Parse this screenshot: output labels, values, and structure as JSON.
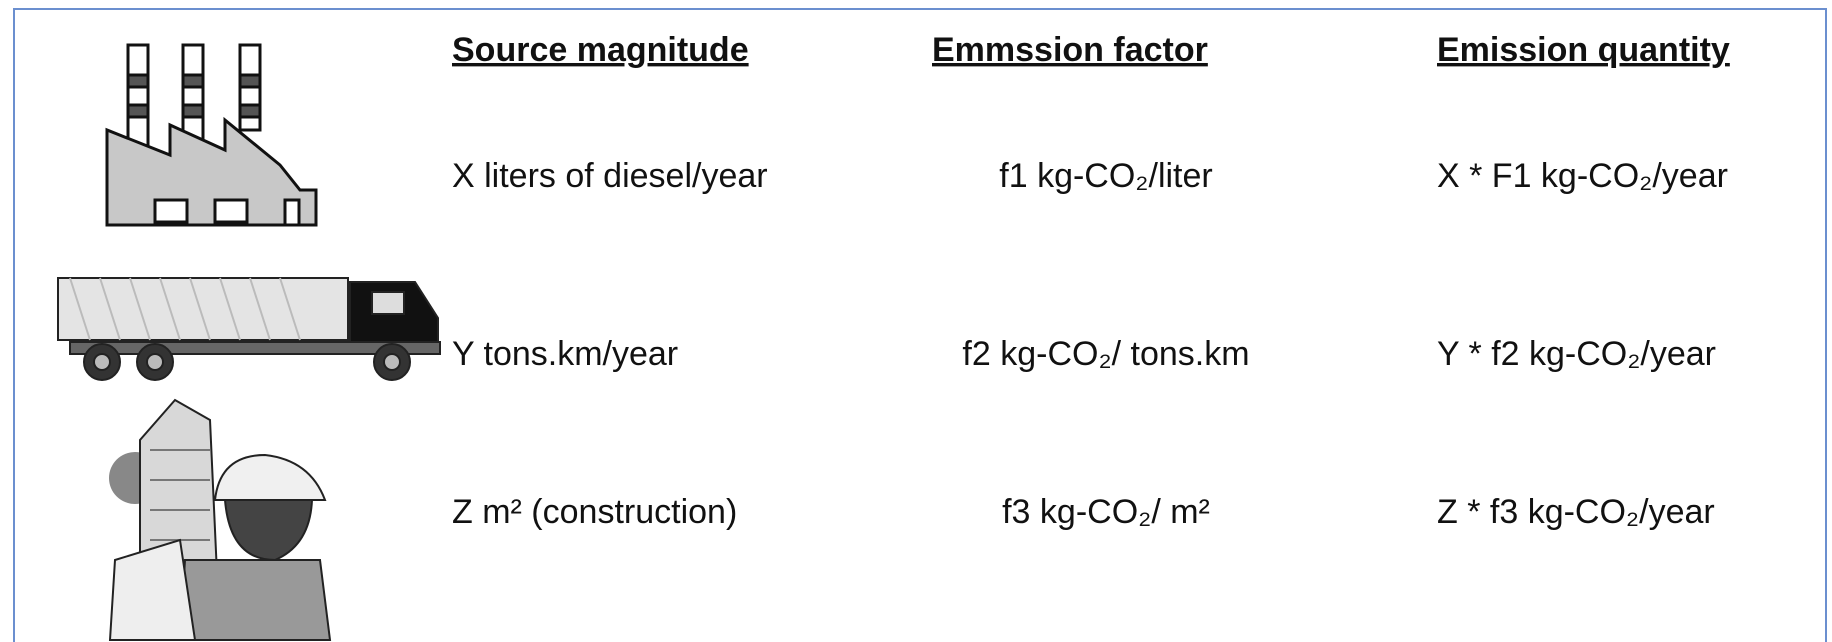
{
  "header": {
    "columns": [
      "Source magnitude",
      "Emmssion factor",
      "Emission quantity"
    ]
  },
  "table": {
    "rows": [
      [
        "X liters of diesel/year",
        "f1 kg-CO₂/liter",
        "X * F1 kg-CO₂/year"
      ],
      [
        "Y tons.km/year",
        "f2 kg-CO₂/ tons.km",
        "Y * f2 kg-CO₂/year"
      ],
      [
        "Z m² (construction)",
        "f3 kg-CO₂/ m²",
        "Z * f3 kg-CO₂/year"
      ]
    ]
  }
}
